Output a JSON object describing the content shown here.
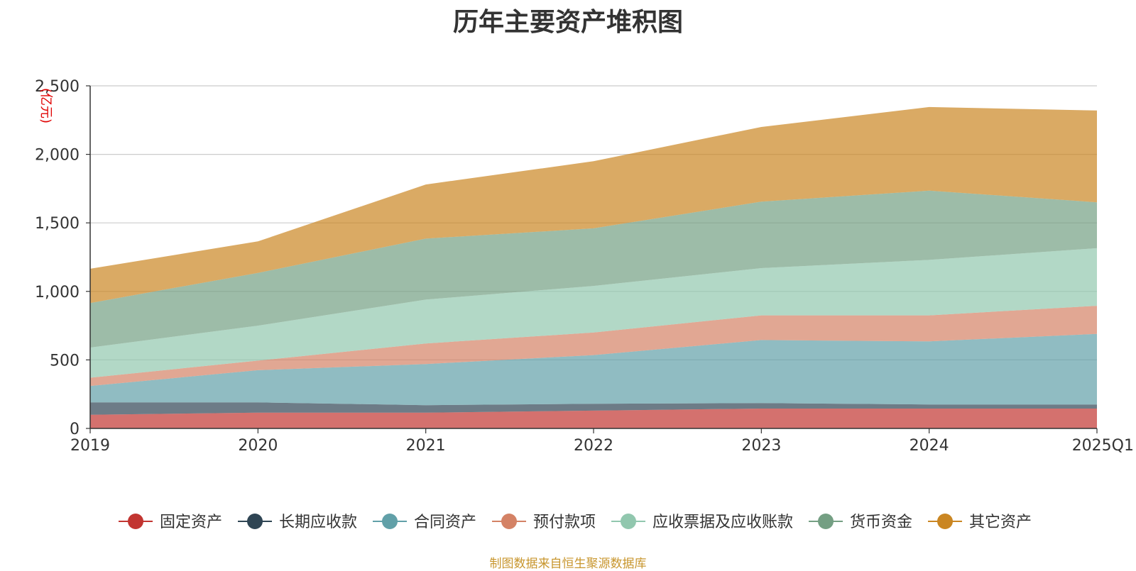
{
  "chart_data": {
    "type": "area",
    "stacked": true,
    "title": "历年主要资产堆积图",
    "unit": "(亿元)",
    "x": [
      "2019",
      "2020",
      "2021",
      "2022",
      "2023",
      "2024",
      "2025Q1"
    ],
    "ylim": [
      0,
      2500
    ],
    "yticks": [
      0,
      500,
      1000,
      1500,
      2000,
      2500
    ],
    "ytick_labels": [
      "0",
      "500",
      "1,000",
      "1,500",
      "2,000",
      "2,500"
    ],
    "grid": true,
    "legend_position": "bottom",
    "series": [
      {
        "name": "固定资产",
        "color": "#c23531",
        "values": [
          100,
          115,
          115,
          130,
          145,
          145,
          145
        ]
      },
      {
        "name": "长期应收款",
        "color": "#2f4554",
        "values": [
          90,
          75,
          55,
          50,
          40,
          30,
          30
        ]
      },
      {
        "name": "合同资产",
        "color": "#61a0a8",
        "values": [
          120,
          235,
          300,
          355,
          460,
          460,
          515
        ]
      },
      {
        "name": "预付款项",
        "color": "#d48265",
        "values": [
          60,
          70,
          150,
          165,
          180,
          190,
          205
        ]
      },
      {
        "name": "应收票据及应收账款",
        "color": "#91c7ae",
        "values": [
          220,
          255,
          320,
          340,
          345,
          405,
          420
        ]
      },
      {
        "name": "货币资金",
        "color": "#749f83",
        "values": [
          325,
          385,
          445,
          420,
          485,
          505,
          335
        ]
      },
      {
        "name": "其它资产",
        "color": "#ca8622",
        "values": [
          250,
          230,
          395,
          490,
          545,
          610,
          670
        ]
      }
    ],
    "source": "制图数据来自恒生聚源数据库"
  }
}
